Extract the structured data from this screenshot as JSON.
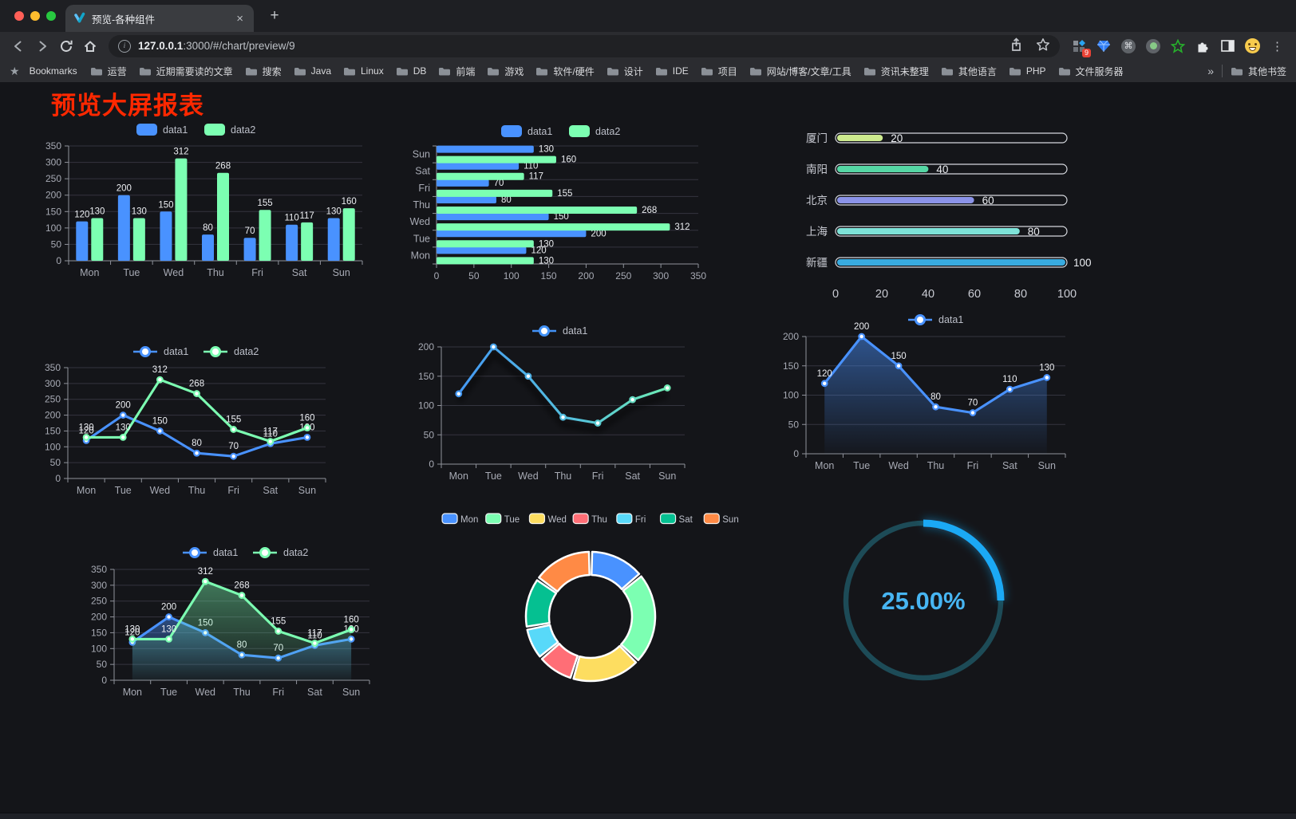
{
  "browser": {
    "window_controls": [
      "close",
      "minimize",
      "zoom"
    ],
    "tab": {
      "title": "预览-各种组件",
      "close_glyph": "×"
    },
    "new_tab_label": "+",
    "address": {
      "host": "127.0.0.1",
      "path": ":3000/#/chart/preview/9"
    },
    "extensions_badge": "9",
    "menu_glyph": "⋮",
    "bookmarks": {
      "label": "Bookmarks",
      "folders": [
        "运营",
        "近期需要读的文章",
        "搜索",
        "Java",
        "Linux",
        "DB",
        "前端",
        "游戏",
        "软件/硬件",
        "设计",
        "IDE",
        "项目",
        "网站/博客/文章/工具",
        "资讯未整理",
        "其他语言",
        "PHP",
        "文件服务器"
      ],
      "overflow_chevron": "»",
      "other_bookmarks": "其他书签"
    }
  },
  "page": {
    "heading": "预览大屏报表",
    "heading_color": "#ff2800",
    "background": "#141519"
  },
  "palette": {
    "blue": "#4992ff",
    "green": "#7cffb2",
    "yellow": "#fddd60",
    "red": "#ff6e76",
    "cyan": "#58d9f9",
    "teal": "#05c091",
    "orange": "#ff8a45"
  },
  "chart_data": [
    {
      "id": "grouped-bar",
      "type": "bar",
      "categories": [
        "Mon",
        "Tue",
        "Wed",
        "Thu",
        "Fri",
        "Sat",
        "Sun"
      ],
      "series": [
        {
          "name": "data1",
          "color": "#4992ff",
          "values": [
            120,
            200,
            150,
            80,
            70,
            110,
            130
          ]
        },
        {
          "name": "data2",
          "color": "#7cffb2",
          "values": [
            130,
            130,
            312,
            268,
            155,
            117,
            160
          ]
        }
      ],
      "ylim": [
        0,
        350
      ],
      "ystep": 50,
      "legend_position": "top",
      "grid": true
    },
    {
      "id": "grouped-bar-horizontal",
      "type": "bar",
      "orientation": "horizontal",
      "categories": [
        "Mon",
        "Tue",
        "Wed",
        "Thu",
        "Fri",
        "Sat",
        "Sun"
      ],
      "series": [
        {
          "name": "data1",
          "color": "#4992ff",
          "values": [
            120,
            200,
            150,
            80,
            70,
            110,
            130
          ]
        },
        {
          "name": "data2",
          "color": "#7cffb2",
          "values": [
            130,
            130,
            312,
            268,
            155,
            117,
            160
          ]
        }
      ],
      "xlim": [
        0,
        350
      ],
      "xstep": 50,
      "legend_position": "top"
    },
    {
      "id": "city-progress",
      "type": "bar",
      "orientation": "horizontal",
      "categories": [
        "厦门",
        "南阳",
        "北京",
        "上海",
        "新疆"
      ],
      "values": [
        20,
        40,
        60,
        80,
        100
      ],
      "colors": [
        "#cdea8e",
        "#55d6a4",
        "#8b93e8",
        "#7ee2d8",
        "#38abe0"
      ],
      "xlim": [
        0,
        100
      ],
      "xticks": [
        0,
        20,
        40,
        60,
        80,
        100
      ]
    },
    {
      "id": "dual-line",
      "type": "line",
      "categories": [
        "Mon",
        "Tue",
        "Wed",
        "Thu",
        "Fri",
        "Sat",
        "Sun"
      ],
      "series": [
        {
          "name": "data1",
          "color": "#4992ff",
          "values": [
            120,
            200,
            150,
            80,
            70,
            110,
            130
          ]
        },
        {
          "name": "data2",
          "color": "#7cffb2",
          "values": [
            130,
            130,
            312,
            268,
            155,
            117,
            160
          ]
        }
      ],
      "ylim": [
        0,
        350
      ],
      "ystep": 50,
      "labels": true
    },
    {
      "id": "gradient-line",
      "type": "line",
      "categories": [
        "Mon",
        "Tue",
        "Wed",
        "Thu",
        "Fri",
        "Sat",
        "Sun"
      ],
      "series": [
        {
          "name": "data1",
          "gradient": [
            "#4292f7",
            "#55c2dc",
            "#72f3ac"
          ],
          "values": [
            120,
            200,
            150,
            80,
            70,
            110,
            130
          ]
        }
      ],
      "ylim": [
        0,
        200
      ],
      "ystep": 50,
      "labels": false
    },
    {
      "id": "area-line",
      "type": "area",
      "categories": [
        "Mon",
        "Tue",
        "Wed",
        "Thu",
        "Fri",
        "Sat",
        "Sun"
      ],
      "series": [
        {
          "name": "data1",
          "color": "#4992ff",
          "values": [
            120,
            200,
            150,
            80,
            70,
            110,
            130
          ]
        }
      ],
      "ylim": [
        0,
        200
      ],
      "ystep": 50,
      "labels": true
    },
    {
      "id": "dual-area",
      "type": "area",
      "categories": [
        "Mon",
        "Tue",
        "Wed",
        "Thu",
        "Fri",
        "Sat",
        "Sun"
      ],
      "series": [
        {
          "name": "data1",
          "color": "#4992ff",
          "values": [
            120,
            200,
            150,
            80,
            70,
            110,
            130
          ]
        },
        {
          "name": "data2",
          "color": "#7cffb2",
          "values": [
            130,
            130,
            312,
            268,
            155,
            117,
            160
          ]
        }
      ],
      "ylim": [
        0,
        350
      ],
      "ystep": 50,
      "labels": true
    },
    {
      "id": "week-donut",
      "type": "pie",
      "categories": [
        "Mon",
        "Tue",
        "Wed",
        "Thu",
        "Fri",
        "Sat",
        "Sun"
      ],
      "values": [
        120,
        200,
        150,
        80,
        70,
        110,
        130
      ],
      "colors": [
        "#4992ff",
        "#7cffb2",
        "#fddd60",
        "#ff6e76",
        "#58d9f9",
        "#05c091",
        "#ff8a45"
      ],
      "legend_position": "top"
    },
    {
      "id": "percent-gauge",
      "type": "gauge",
      "value": 25,
      "max": 100,
      "label": "25.00%",
      "color": "#1ba9f5",
      "track_color": "#1d4b57",
      "text_color": "#47b5f2"
    }
  ]
}
